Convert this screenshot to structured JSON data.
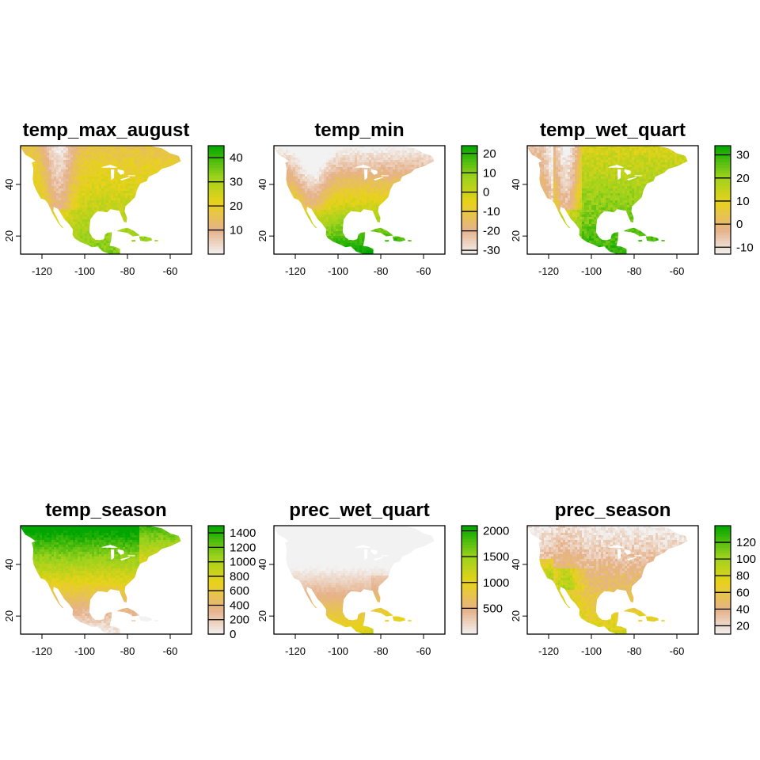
{
  "colors": {
    "palette_low": "#f2f2f2",
    "palette_mid_low": "#e6b28c",
    "palette_mid": "#e8d21a",
    "palette_mid_high": "#9bd21c",
    "palette_high": "#00a600",
    "background": "#ffffff",
    "na": "#ffffff"
  },
  "chart_data": [
    {
      "type": "heatmap",
      "title": "temp_max_august",
      "xlabel": "",
      "ylabel": "",
      "x_ticks": [
        -120,
        -100,
        -80,
        -60
      ],
      "y_ticks": [
        20,
        40
      ],
      "xlim": [
        -130,
        -50
      ],
      "ylim": [
        13,
        55
      ],
      "legend": {
        "position": "right",
        "ticks": [
          10,
          20,
          30,
          40
        ],
        "range": [
          0,
          45
        ]
      },
      "spatial_pattern": "warm-south"
    },
    {
      "type": "heatmap",
      "title": "temp_min",
      "xlabel": "",
      "ylabel": "",
      "x_ticks": [
        -120,
        -100,
        -80,
        -60
      ],
      "y_ticks": [
        20,
        40
      ],
      "xlim": [
        -130,
        -50
      ],
      "ylim": [
        13,
        55
      ],
      "legend": {
        "position": "right",
        "ticks": [
          -30,
          -20,
          -10,
          0,
          10,
          20
        ],
        "range": [
          -32,
          24
        ]
      },
      "spatial_pattern": "cold-north"
    },
    {
      "type": "heatmap",
      "title": "temp_wet_quart",
      "xlabel": "",
      "ylabel": "",
      "x_ticks": [
        -120,
        -100,
        -80,
        -60
      ],
      "y_ticks": [
        20,
        40
      ],
      "xlim": [
        -130,
        -50
      ],
      "ylim": [
        13,
        55
      ],
      "legend": {
        "position": "right",
        "ticks": [
          -10,
          0,
          10,
          20,
          30
        ],
        "range": [
          -13,
          34
        ]
      },
      "spatial_pattern": "wet-warm"
    },
    {
      "type": "heatmap",
      "title": "temp_season",
      "xlabel": "",
      "ylabel": "",
      "x_ticks": [
        -120,
        -100,
        -80,
        -60
      ],
      "y_ticks": [
        20,
        40
      ],
      "xlim": [
        -130,
        -50
      ],
      "ylim": [
        13,
        55
      ],
      "legend": {
        "position": "right",
        "ticks": [
          0,
          200,
          400,
          600,
          800,
          1000,
          1200,
          1400
        ],
        "range": [
          0,
          1500
        ]
      },
      "spatial_pattern": "seasonal-north"
    },
    {
      "type": "heatmap",
      "title": "prec_wet_quart",
      "xlabel": "",
      "ylabel": "",
      "x_ticks": [
        -120,
        -100,
        -80,
        -60
      ],
      "y_ticks": [
        20,
        40
      ],
      "xlim": [
        -130,
        -50
      ],
      "ylim": [
        13,
        55
      ],
      "legend": {
        "position": "right",
        "ticks": [
          500,
          1000,
          1500,
          2000
        ],
        "range": [
          0,
          2100
        ]
      },
      "spatial_pattern": "wet-tropics"
    },
    {
      "type": "heatmap",
      "title": "prec_season",
      "xlabel": "",
      "ylabel": "",
      "x_ticks": [
        -120,
        -100,
        -80,
        -60
      ],
      "y_ticks": [
        20,
        40
      ],
      "xlim": [
        -130,
        -50
      ],
      "ylim": [
        13,
        55
      ],
      "legend": {
        "position": "right",
        "ticks": [
          20,
          40,
          60,
          80,
          100,
          120
        ],
        "range": [
          10,
          140
        ]
      },
      "spatial_pattern": "season-west"
    }
  ]
}
